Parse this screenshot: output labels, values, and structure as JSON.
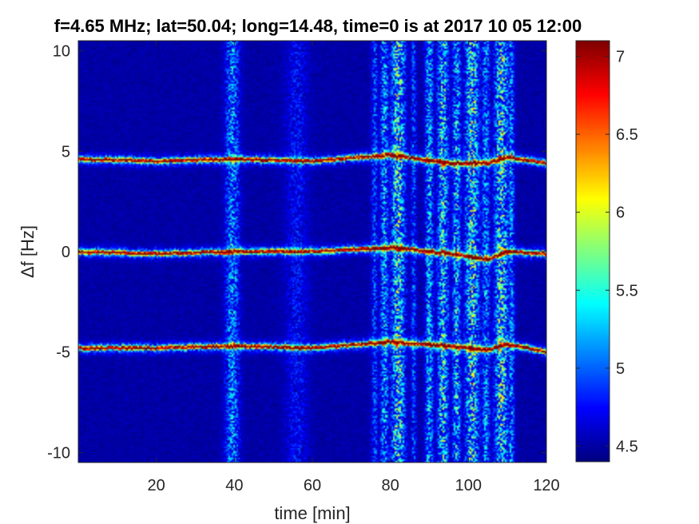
{
  "chart_data": {
    "type": "heatmap",
    "title": "f=4.65 MHz;  lat=50.04; long=14.48, time=0 is at 2017 10 05 12:00",
    "xlabel": "time [min]",
    "ylabel": "Δf [Hz]",
    "xlim": [
      0,
      120
    ],
    "ylim": [
      -10.5,
      10.5
    ],
    "x_ticks": [
      {
        "value": 20,
        "label": "20"
      },
      {
        "value": 40,
        "label": "40"
      },
      {
        "value": 60,
        "label": "60"
      },
      {
        "value": 80,
        "label": "80"
      },
      {
        "value": 100,
        "label": "100"
      },
      {
        "value": 120,
        "label": "120"
      }
    ],
    "y_ticks": [
      {
        "value": 10,
        "label": "10"
      },
      {
        "value": 5,
        "label": "5"
      },
      {
        "value": 0,
        "label": "0"
      },
      {
        "value": -5,
        "label": "-5"
      },
      {
        "value": -10,
        "label": "-10"
      }
    ],
    "colorbar": {
      "colormap": "jet",
      "clim": [
        4.4,
        7.1
      ],
      "ticks": [
        {
          "value": 4.5,
          "label": "4.5"
        },
        {
          "value": 5,
          "label": "5"
        },
        {
          "value": 5.5,
          "label": "5.5"
        },
        {
          "value": 6,
          "label": "6"
        },
        {
          "value": 6.5,
          "label": "6.5"
        },
        {
          "value": 7,
          "label": "7"
        }
      ]
    },
    "background_level": 4.5,
    "carrier_lines": [
      {
        "offset_hz": 4.6,
        "points": [
          [
            0,
            4.6
          ],
          [
            20,
            4.5
          ],
          [
            40,
            4.6
          ],
          [
            60,
            4.5
          ],
          [
            80,
            4.8
          ],
          [
            95,
            4.4
          ],
          [
            105,
            4.4
          ],
          [
            110,
            4.7
          ],
          [
            120,
            4.4
          ]
        ]
      },
      {
        "offset_hz": 0.0,
        "points": [
          [
            0,
            0.0
          ],
          [
            20,
            -0.1
          ],
          [
            40,
            0.0
          ],
          [
            60,
            0.0
          ],
          [
            80,
            0.2
          ],
          [
            95,
            -0.1
          ],
          [
            105,
            -0.4
          ],
          [
            110,
            0.0
          ],
          [
            120,
            -0.1
          ]
        ]
      },
      {
        "offset_hz": -4.8,
        "points": [
          [
            0,
            -4.8
          ],
          [
            20,
            -4.8
          ],
          [
            40,
            -4.7
          ],
          [
            60,
            -4.8
          ],
          [
            80,
            -4.5
          ],
          [
            95,
            -4.7
          ],
          [
            105,
            -4.9
          ],
          [
            110,
            -4.6
          ],
          [
            120,
            -5.0
          ]
        ]
      }
    ],
    "broadband_bands": [
      {
        "time_min": 39.5,
        "width_min": 2.5,
        "level": 5.2
      },
      {
        "time_min": 56.0,
        "width_min": 4.0,
        "level": 4.8
      },
      {
        "time_min": 76.0,
        "width_min": 1.2,
        "level": 5.0
      },
      {
        "time_min": 78.5,
        "width_min": 1.5,
        "level": 5.3
      },
      {
        "time_min": 82.0,
        "width_min": 2.5,
        "level": 5.6
      },
      {
        "time_min": 86.0,
        "width_min": 1.0,
        "level": 5.0
      },
      {
        "time_min": 90.0,
        "width_min": 1.5,
        "level": 5.3
      },
      {
        "time_min": 93.5,
        "width_min": 2.0,
        "level": 5.5
      },
      {
        "time_min": 97.0,
        "width_min": 1.5,
        "level": 5.4
      },
      {
        "time_min": 101.0,
        "width_min": 2.5,
        "level": 5.6
      },
      {
        "time_min": 104.5,
        "width_min": 1.5,
        "level": 5.2
      },
      {
        "time_min": 108.5,
        "width_min": 2.5,
        "level": 5.6
      },
      {
        "time_min": 111.0,
        "width_min": 1.2,
        "level": 5.2
      }
    ]
  }
}
